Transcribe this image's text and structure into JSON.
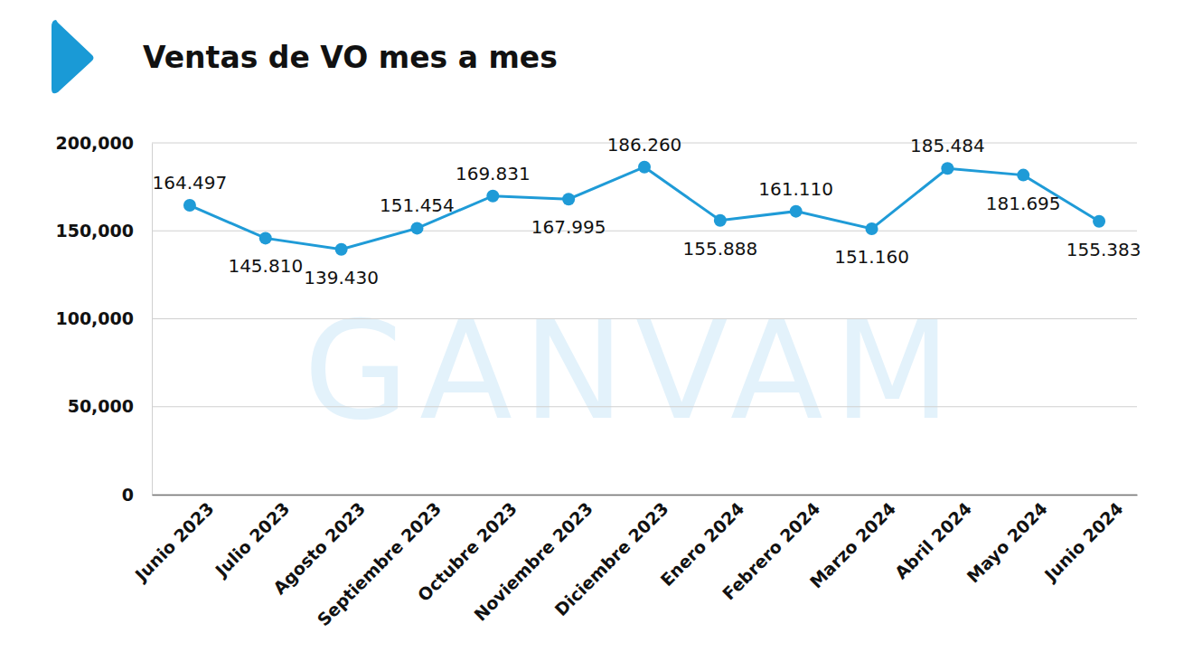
{
  "chart_data": {
    "type": "line",
    "title": "Ventas de VO mes a mes",
    "annotations": [
      "GANVAM"
    ],
    "categories": [
      "Junio 2023",
      "Julio 2023",
      "Agosto 2023",
      "Septiembre 2023",
      "Octubre 2023",
      "Noviembre 2023",
      "Diciembre 2023",
      "Enero 2024",
      "Febrero 2024",
      "Marzo 2024",
      "Abril 2024",
      "Mayo 2024",
      "Junio 2024"
    ],
    "values": [
      164497,
      145810,
      139430,
      151454,
      169831,
      167995,
      186260,
      155888,
      161110,
      151160,
      185484,
      181695,
      155383
    ],
    "value_labels": [
      "164.497",
      "145.810",
      "139.430",
      "151.454",
      "169.831",
      "167.995",
      "186.260",
      "155.888",
      "161.110",
      "151.160",
      "185.484",
      "181.695",
      "155.383"
    ],
    "color": "#1f9bd7",
    "marker": "circle",
    "data_labels": true,
    "grid": true,
    "ylim": [
      0,
      200000
    ],
    "yticks": [
      0,
      {
        "value": 50000,
        "label": "50,000"
      },
      {
        "value": 100000,
        "label": "100,000"
      },
      {
        "value": 150000,
        "label": "150,000"
      },
      {
        "value": 200000,
        "label": "200,000"
      }
    ]
  }
}
